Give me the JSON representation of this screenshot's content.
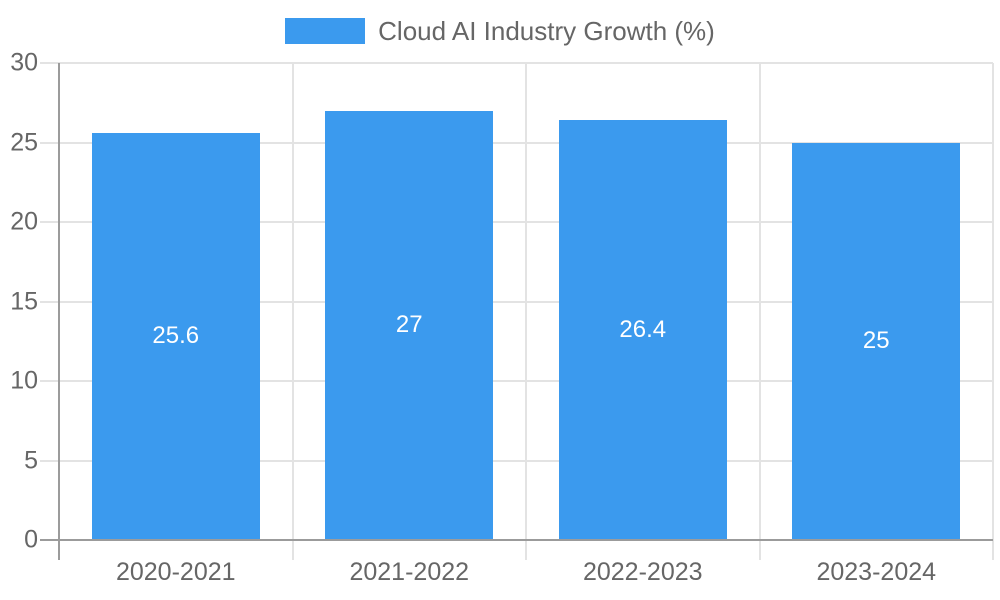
{
  "legend": {
    "label": "Cloud AI Industry Growth (%)"
  },
  "chart_data": {
    "type": "bar",
    "title": "Cloud AI Industry Growth (%)",
    "categories": [
      "2020-2021",
      "2021-2022",
      "2022-2023",
      "2023-2024"
    ],
    "values": [
      25.6,
      27,
      26.4,
      25
    ],
    "value_labels": [
      "25.6",
      "27",
      "26.4",
      "25"
    ],
    "xlabel": "",
    "ylabel": "",
    "ylim": [
      0,
      30
    ],
    "yticks": [
      0,
      5,
      10,
      15,
      20,
      25,
      30
    ],
    "grid": true,
    "legend_position": "top-center",
    "colors": {
      "bar": "#3b9aee",
      "value_label": "#ffffff",
      "axis_text": "#666666",
      "gridline": "#e3e3e3",
      "axis_line": "#9b9b9b"
    }
  }
}
